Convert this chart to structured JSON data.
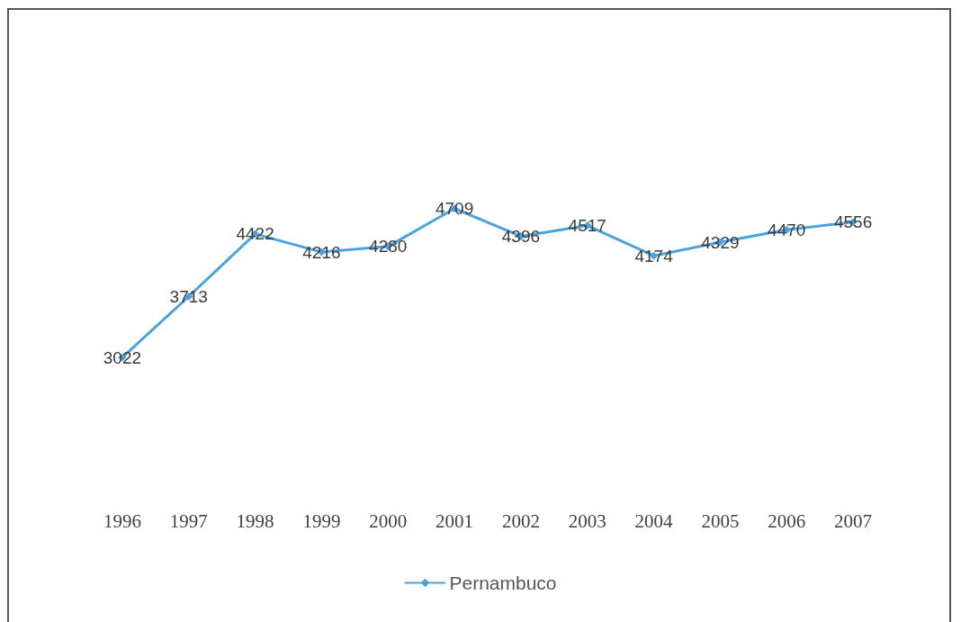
{
  "chart_data": {
    "type": "line",
    "categories": [
      "1996",
      "1997",
      "1998",
      "1999",
      "2000",
      "2001",
      "2002",
      "2003",
      "2004",
      "2005",
      "2006",
      "2007"
    ],
    "series": [
      {
        "name": "Pernambuco",
        "color": "#4aa3df",
        "values": [
          3022,
          3713,
          4422,
          4216,
          4280,
          4709,
          4396,
          4517,
          4174,
          4329,
          4470,
          4556
        ]
      }
    ],
    "data_labels": true,
    "marker": "diamond",
    "line_style": "solid",
    "legend": "bottom",
    "grid": false,
    "tick_labels": "x"
  }
}
